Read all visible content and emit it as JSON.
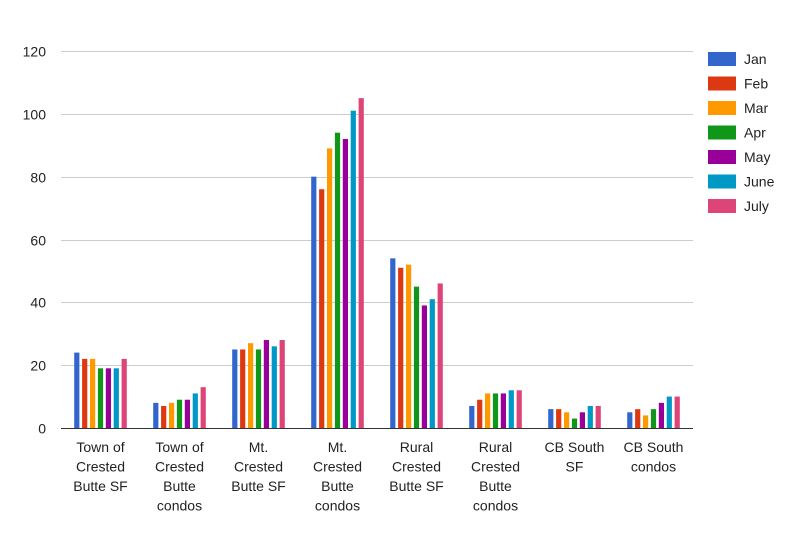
{
  "chart_data": {
    "type": "bar",
    "title": "",
    "xlabel": "",
    "ylabel": "",
    "ylim": [
      0,
      120
    ],
    "yticks": [
      0,
      20,
      40,
      60,
      80,
      100,
      120
    ],
    "grid": true,
    "legend_position": "right",
    "categories": [
      [
        "Town of",
        "Crested",
        "Butte SF"
      ],
      [
        "Town of",
        "Crested",
        "Butte",
        "condos"
      ],
      [
        "Mt.",
        "Crested",
        "Butte SF"
      ],
      [
        "Mt.",
        "Crested",
        "Butte",
        "condos"
      ],
      [
        "Rural",
        "Crested",
        "Butte SF"
      ],
      [
        "Rural",
        "Crested",
        "Butte",
        "condos"
      ],
      [
        "CB South",
        "SF"
      ],
      [
        "CB South",
        "condos"
      ]
    ],
    "series": [
      {
        "name": "Jan",
        "color": "#3366cc",
        "values": [
          24,
          8,
          25,
          80,
          54,
          7,
          6,
          5
        ]
      },
      {
        "name": "Feb",
        "color": "#dc3912",
        "values": [
          22,
          7,
          25,
          76,
          51,
          9,
          6,
          6
        ]
      },
      {
        "name": "Mar",
        "color": "#ff9900",
        "values": [
          22,
          8,
          27,
          89,
          52,
          11,
          5,
          4
        ]
      },
      {
        "name": "Apr",
        "color": "#109618",
        "values": [
          19,
          9,
          25,
          94,
          45,
          11,
          3,
          6
        ]
      },
      {
        "name": "May",
        "color": "#990099",
        "values": [
          19,
          9,
          28,
          92,
          39,
          11,
          5,
          8
        ]
      },
      {
        "name": "June",
        "color": "#0099c6",
        "values": [
          19,
          11,
          26,
          101,
          41,
          12,
          7,
          10
        ]
      },
      {
        "name": "July",
        "color": "#dd4477",
        "values": [
          22,
          13,
          28,
          105,
          46,
          12,
          7,
          10
        ]
      }
    ]
  }
}
